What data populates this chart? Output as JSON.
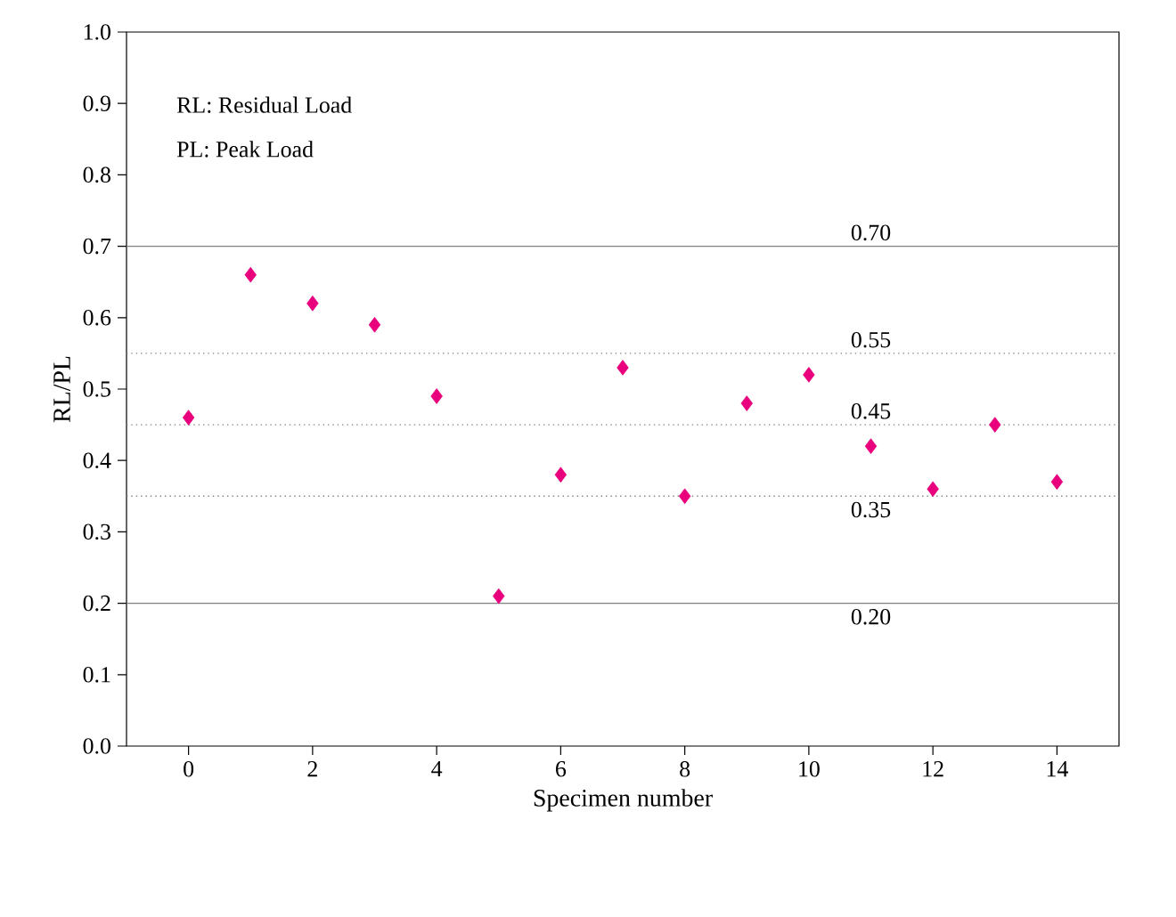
{
  "chart_data": {
    "type": "scatter",
    "xlabel": "Specimen number",
    "ylabel": "RL/PL",
    "x": [
      0,
      1,
      2,
      3,
      4,
      5,
      6,
      7,
      8,
      9,
      10,
      11,
      12,
      13,
      14
    ],
    "series": [
      {
        "color": "#e8007d",
        "values": [
          0.46,
          0.66,
          0.62,
          0.59,
          0.49,
          0.21,
          0.38,
          0.53,
          0.35,
          0.48,
          0.52,
          0.42,
          0.36,
          0.45,
          0.37
        ]
      }
    ],
    "marker": "diamond",
    "xlim": [
      -1,
      15
    ],
    "xticks": [
      0,
      2,
      4,
      6,
      8,
      10,
      12,
      14
    ],
    "ylim": [
      0,
      1
    ],
    "yticks": [
      {
        "value": 0,
        "label": "0.0"
      },
      0.1,
      0.2,
      0.3,
      0.4,
      0.5,
      0.6,
      0.7,
      0.8,
      0.9,
      {
        "value": 1,
        "label": "1.0"
      }
    ],
    "ref_lines": [
      {
        "axis": "y",
        "value": 0.7,
        "label": "0.70",
        "color": "#808080",
        "line_style": "solid"
      },
      {
        "axis": "y",
        "value": 0.55,
        "label": "0.55",
        "color": "#808080",
        "line_style": "dotted"
      },
      {
        "axis": "y",
        "value": 0.45,
        "label": "0.45",
        "color": "#808080",
        "line_style": "dotted"
      },
      {
        "axis": "y",
        "value": 0.35,
        "label": "0.35",
        "color": "#808080",
        "line_style": "dotted"
      },
      {
        "axis": "y",
        "value": 0.2,
        "label": "0.20",
        "color": "#808080",
        "line_style": "solid"
      }
    ],
    "annotations": [
      "RL: Residual Load",
      "PL: Peak Load"
    ],
    "grid": false
  }
}
